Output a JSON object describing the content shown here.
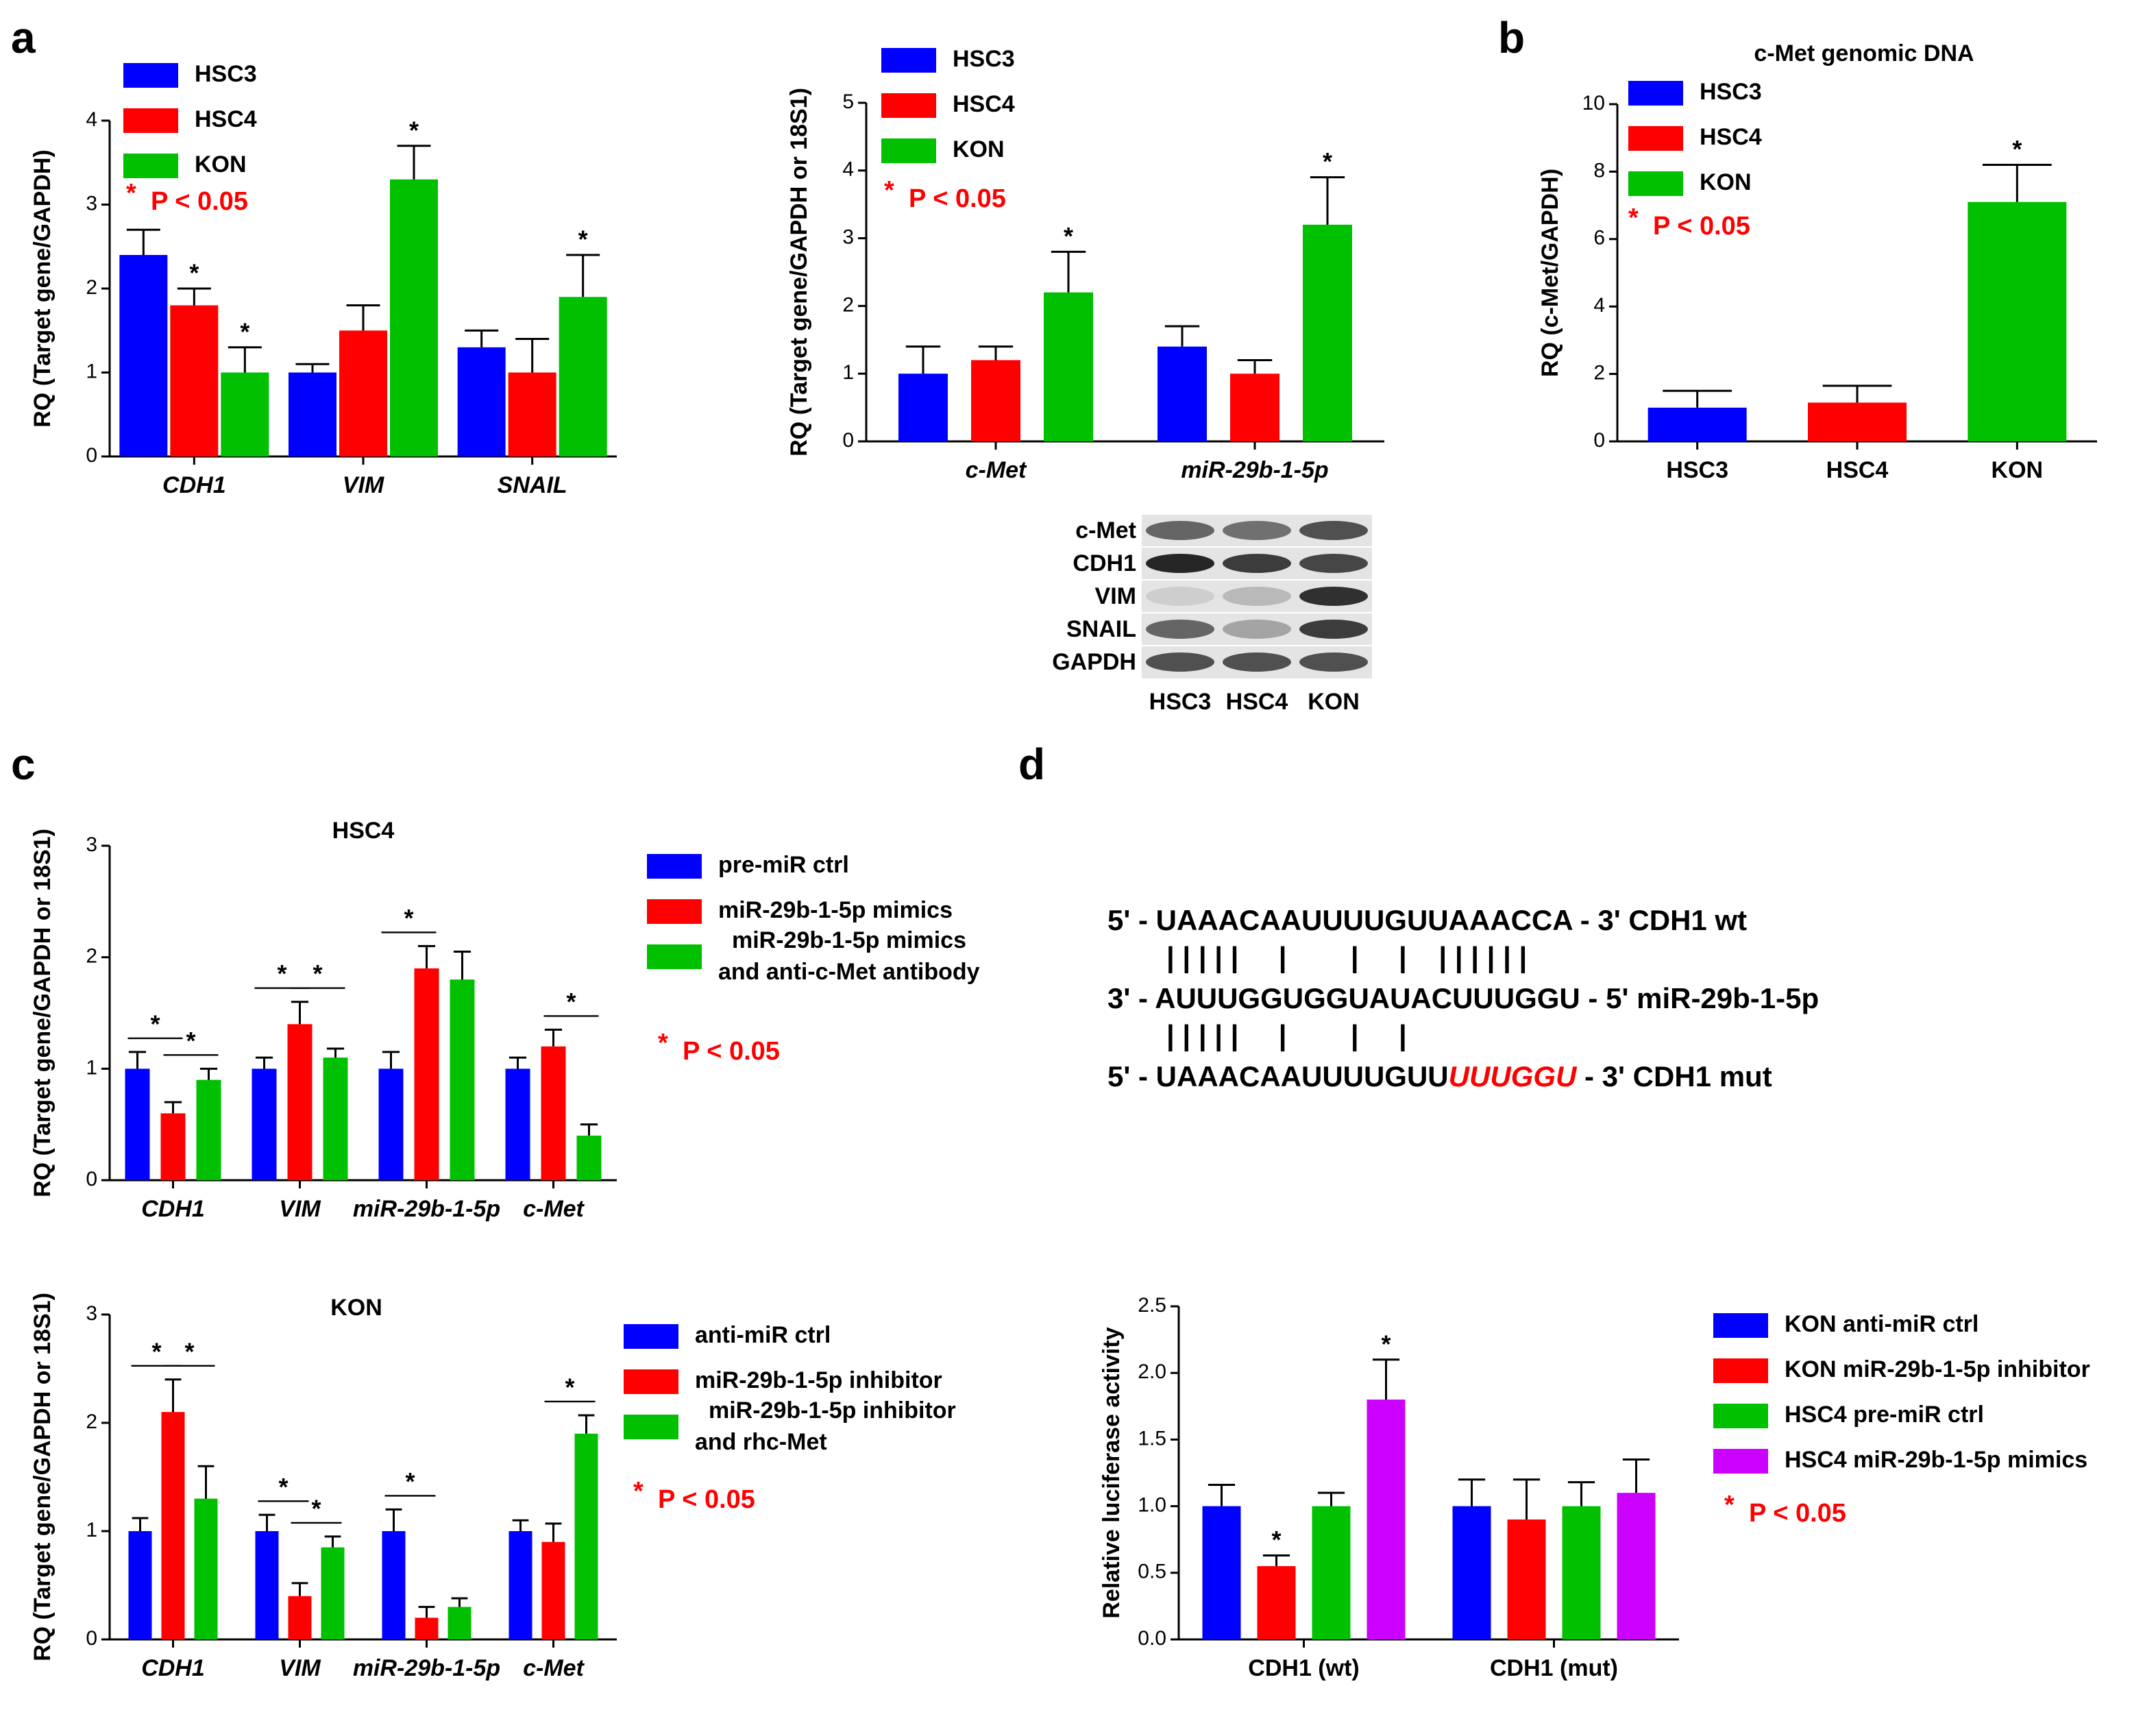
{
  "panel_labels": [
    "a",
    "b",
    "c",
    "d"
  ],
  "chart_data": [
    {
      "type": "bar",
      "categories": [
        "CDH1",
        "VIM",
        "SNAIL"
      ],
      "ylabel": "RQ (Target gene/GAPDH)",
      "ylim": [
        0,
        4
      ],
      "yticks": [
        0,
        1,
        2,
        3,
        4
      ],
      "note_mark": "*",
      "note": "P < 0.05",
      "series": [
        {
          "name": "HSC3",
          "color": "#0000ff",
          "values": [
            2.4,
            1.0,
            1.3
          ],
          "errors": [
            0.3,
            0.1,
            0.2
          ],
          "significance": [
            null,
            null,
            null
          ]
        },
        {
          "name": "HSC4",
          "color": "#ff0000",
          "values": [
            1.8,
            1.5,
            1.0
          ],
          "errors": [
            0.2,
            0.3,
            0.4
          ],
          "significance": [
            "*",
            null,
            null
          ]
        },
        {
          "name": "KON",
          "color": "#00c000",
          "values": [
            1.0,
            3.3,
            1.9
          ],
          "errors": [
            0.3,
            0.4,
            0.5
          ],
          "significance": [
            "*",
            "*",
            "*"
          ]
        }
      ]
    },
    {
      "type": "bar",
      "categories": [
        "c-Met",
        "miR-29b-1-5p"
      ],
      "ylabel": "RQ (Target gene/GAPDH or 18S1)",
      "ylim": [
        0,
        5
      ],
      "yticks": [
        0,
        1,
        2,
        3,
        4,
        5
      ],
      "note_mark": "*",
      "note": "P < 0.05",
      "series": [
        {
          "name": "HSC3",
          "color": "#0000ff",
          "values": [
            1.0,
            1.4
          ],
          "errors": [
            0.4,
            0.3
          ],
          "significance": [
            null,
            null
          ]
        },
        {
          "name": "HSC4",
          "color": "#ff0000",
          "values": [
            1.2,
            1.0
          ],
          "errors": [
            0.2,
            0.2
          ],
          "significance": [
            null,
            null
          ]
        },
        {
          "name": "KON",
          "color": "#00c000",
          "values": [
            2.2,
            3.2
          ],
          "errors": [
            0.6,
            0.7
          ],
          "significance": [
            "*",
            "*"
          ]
        }
      ]
    },
    {
      "type": "bar",
      "title": "c-Met genomic DNA",
      "categories": [
        "HSC3",
        "HSC4",
        "KON"
      ],
      "ylabel": "RQ (c-Met/GAPDH)",
      "ylim": [
        0,
        10
      ],
      "yticks": [
        0,
        2,
        4,
        6,
        8,
        10
      ],
      "note_mark": "*",
      "note": "P < 0.05",
      "values": [
        1.0,
        1.15,
        7.1
      ],
      "errors": [
        0.5,
        0.5,
        1.1
      ],
      "colors": [
        "#0000ff",
        "#ff0000",
        "#00c000"
      ],
      "significance": [
        null,
        null,
        "*"
      ]
    },
    {
      "type": "bar",
      "title": "HSC4",
      "categories": [
        "CDH1",
        "VIM",
        "miR-29b-1-5p",
        "c-Met"
      ],
      "ylabel": "RQ (Target gene/GAPDH or 18S1)",
      "ylim": [
        0,
        3
      ],
      "yticks": [
        0,
        1,
        2,
        3
      ],
      "note_mark": "*",
      "note": "P < 0.05",
      "series": [
        {
          "name": "pre-miR ctrl",
          "color": "#0000ff",
          "values": [
            1.0,
            1.0,
            1.0,
            1.0
          ],
          "errors": [
            0.15,
            0.1,
            0.15,
            0.1
          ]
        },
        {
          "name": "miR-29b-1-5p mimics",
          "color": "#ff0000",
          "values": [
            0.6,
            1.4,
            1.9,
            1.2
          ],
          "errors": [
            0.1,
            0.2,
            0.2,
            0.15
          ]
        },
        {
          "name": "miR-29b-1-5p mimics and anti-c-Met antibody",
          "color": "#00c000",
          "values": [
            0.9,
            1.1,
            1.8,
            0.4
          ],
          "errors": [
            0.1,
            0.08,
            0.25,
            0.1
          ]
        }
      ],
      "brackets": [
        {
          "label": "*",
          "category": 0,
          "pair": [
            0,
            1
          ]
        },
        {
          "label": "*",
          "category": 0,
          "pair": [
            1,
            2
          ]
        },
        {
          "label": "*",
          "category": 1,
          "pair": [
            0,
            1
          ]
        },
        {
          "label": "*",
          "category": 1,
          "pair": [
            1,
            2
          ]
        },
        {
          "label": "*",
          "category": 2,
          "pair": [
            0,
            1
          ]
        },
        {
          "label": "*",
          "category": 3,
          "pair": [
            1,
            2
          ]
        }
      ]
    },
    {
      "type": "bar",
      "title": "KON",
      "categories": [
        "CDH1",
        "VIM",
        "miR-29b-1-5p",
        "c-Met"
      ],
      "ylabel": "RQ (Target gene/GAPDH or 18S1)",
      "ylim": [
        0,
        3
      ],
      "yticks": [
        0,
        1,
        2,
        3
      ],
      "note_mark": "*",
      "note": "P < 0.05",
      "series": [
        {
          "name": "anti-miR ctrl",
          "color": "#0000ff",
          "values": [
            1.0,
            1.0,
            1.0,
            1.0
          ],
          "errors": [
            0.12,
            0.15,
            0.2,
            0.1
          ]
        },
        {
          "name": "miR-29b-1-5p inhibitor",
          "color": "#ff0000",
          "values": [
            2.1,
            0.4,
            0.2,
            0.9
          ],
          "errors": [
            0.3,
            0.12,
            0.1,
            0.17
          ]
        },
        {
          "name": "miR-29b-1-5p inhibitor and rhc-Met",
          "color": "#00c000",
          "values": [
            1.3,
            0.85,
            0.3,
            1.9
          ],
          "errors": [
            0.3,
            0.1,
            0.08,
            0.17
          ]
        }
      ],
      "brackets": [
        {
          "label": "*",
          "category": 0,
          "pair": [
            0,
            1
          ]
        },
        {
          "label": "*",
          "category": 0,
          "pair": [
            1,
            2
          ]
        },
        {
          "label": "*",
          "category": 1,
          "pair": [
            0,
            1
          ]
        },
        {
          "label": "*",
          "category": 1,
          "pair": [
            1,
            2
          ]
        },
        {
          "label": "*",
          "category": 2,
          "pair": [
            0,
            1
          ]
        },
        {
          "label": "*",
          "category": 3,
          "pair": [
            1,
            2
          ]
        }
      ]
    },
    {
      "type": "bar",
      "categories": [
        "CDH1 (wt)",
        "CDH1 (mut)"
      ],
      "ylabel": "Relative luciferase activity",
      "ylim": [
        0,
        2.5
      ],
      "yticks": [
        {
          "value": 0,
          "label": "0.0"
        },
        {
          "value": 0.5,
          "label": "0.5"
        },
        {
          "value": 1,
          "label": "1.0"
        },
        {
          "value": 1.5,
          "label": "1.5"
        },
        {
          "value": 2,
          "label": "2.0"
        },
        {
          "value": 2.5,
          "label": "2.5"
        }
      ],
      "note_mark": "*",
      "note": "P < 0.05",
      "series": [
        {
          "name": "KON anti-miR ctrl",
          "color": "#0000ff",
          "values": [
            1.0,
            1.0
          ],
          "errors": [
            0.16,
            0.2
          ],
          "significance": [
            null,
            null
          ]
        },
        {
          "name": "KON miR-29b-1-5p inhibitor",
          "color": "#ff0000",
          "values": [
            0.55,
            0.9
          ],
          "errors": [
            0.08,
            0.3
          ],
          "significance": [
            "*",
            null
          ]
        },
        {
          "name": "HSC4 pre-miR ctrl",
          "color": "#00c000",
          "values": [
            1.0,
            1.0
          ],
          "errors": [
            0.1,
            0.18
          ],
          "significance": [
            null,
            null
          ]
        },
        {
          "name": "HSC4 miR-29b-1-5p mimics",
          "color": "#cc00ff",
          "values": [
            1.8,
            1.1
          ],
          "errors": [
            0.3,
            0.25
          ],
          "significance": [
            "*",
            null
          ]
        }
      ]
    }
  ],
  "blot": {
    "rows": [
      "c-Met",
      "CDH1",
      "VIM",
      "SNAIL",
      "GAPDH"
    ],
    "lanes": [
      "HSC3",
      "HSC4",
      "KON"
    ]
  },
  "sequence": {
    "wt": "5' - UAAACAAUUUUGUUAAACCA - 3' CDH1 wt",
    "pairs_wt": "| | | | |     |        |     |    | | | | | |",
    "mir": "3' - AUUUGGUGGUAUACUUUGGU - 5' miR-29b-1-5p",
    "pairs_mut": "| | | | |     |        |     |",
    "mut_prefix": "5' - UAAACAAUUUUGUU",
    "mut_changed": "UUUGGU",
    "mut_suffix": " - 3' CDH1 mut"
  }
}
